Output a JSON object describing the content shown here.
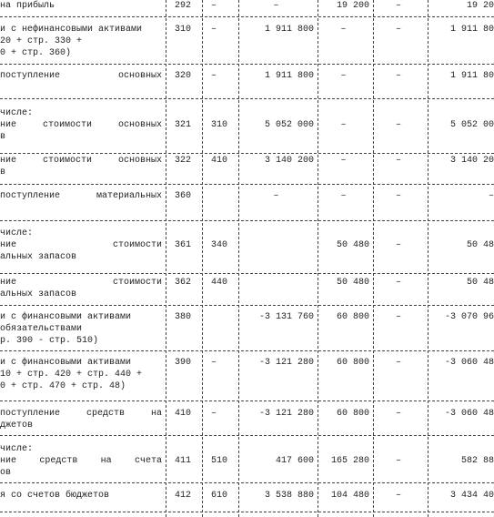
{
  "table": {
    "rows": [
      {
        "name": [
          "на прибыль"
        ],
        "cells": [
          "292",
          "–",
          "–",
          "19 200",
          "–",
          "19 20"
        ]
      },
      {
        "name": [
          "и с нефинансовыми активами",
          "20 + стр. 330 +",
          "0 + стр. 360)"
        ],
        "cells": [
          "310",
          "–",
          "1 911 800",
          "–",
          "–",
          "1 911 80"
        ]
      },
      {
        "name": [
          "поступление основных"
        ],
        "cells": [
          "320",
          "–",
          "1 911 800",
          "–",
          "–",
          "1 911 80"
        ]
      },
      {
        "name": [
          "числе:",
          "ние стоимости основных",
          "в"
        ],
        "cells": [
          "321",
          "310",
          "5 052 000",
          "–",
          "–",
          "5 052 00"
        ]
      },
      {
        "name": [
          "ние стоимости основных",
          "в"
        ],
        "cells": [
          "322",
          "410",
          "3 140 200",
          "–",
          "–",
          "3 140 20"
        ]
      },
      {
        "name": [
          "поступление материальных"
        ],
        "cells": [
          "360",
          "",
          "–",
          "–",
          "–",
          "–"
        ]
      },
      {
        "name": [
          "числе:",
          "ние стоимости",
          "альных запасов"
        ],
        "cells": [
          "361",
          "340",
          "",
          "50 480",
          "–",
          "50 48"
        ]
      },
      {
        "name": [
          "ние стоимости",
          "альных запасов"
        ],
        "cells": [
          "362",
          "440",
          "",
          "50 480",
          "–",
          "50 48"
        ]
      },
      {
        "name": [
          "и с финансовыми активами",
          "обязательствами",
          "р. 390 - стр. 510)"
        ],
        "cells": [
          "380",
          "",
          "-3 131 760",
          "60 800",
          "–",
          "-3 070 96"
        ]
      },
      {
        "name": [
          "и с финансовыми активами",
          "10 + стр. 420 + стр. 440 +",
          "0 + стр. 470 + стр. 48)"
        ],
        "cells": [
          "390",
          "–",
          "-3 121 280",
          "60 800",
          "–",
          "-3 060 48"
        ]
      },
      {
        "name": [
          "поступление средств на",
          "джетов"
        ],
        "cells": [
          "410",
          "–",
          "-3 121 280",
          "60 800",
          "–",
          "-3 060 48"
        ]
      },
      {
        "name": [
          "числе:",
          "ние средств на счета",
          "ов"
        ],
        "cells": [
          "411",
          "510",
          "417 600",
          "165 280",
          "–",
          "582 88"
        ]
      },
      {
        "name": [
          "я со счетов бюджетов"
        ],
        "cells": [
          "412",
          "610",
          "3 538 880",
          "104 480",
          "–",
          "3 434 40"
        ]
      }
    ]
  }
}
